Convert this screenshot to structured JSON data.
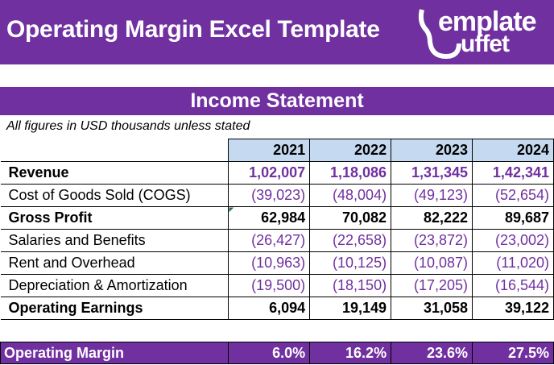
{
  "header": {
    "title": "Operating Margin Excel Template",
    "logo_text": [
      "emplate",
      "uffet"
    ]
  },
  "section_title": "Income Statement",
  "note": "All figures in USD thousands unless stated",
  "years": [
    "2021",
    "2022",
    "2023",
    "2024"
  ],
  "rows": [
    {
      "label": "Revenue",
      "values": [
        "1,02,007",
        "1,18,086",
        "1,31,345",
        "1,42,341"
      ]
    },
    {
      "label": "Cost of Goods Sold (COGS)",
      "values": [
        "(39,023)",
        "(48,004)",
        "(49,123)",
        "(52,654)"
      ]
    },
    {
      "label": "Gross Profit",
      "values": [
        "62,984",
        "70,082",
        "82,222",
        "89,687"
      ]
    },
    {
      "label": "Salaries and Benefits",
      "values": [
        "(26,427)",
        "(22,658)",
        "(23,872)",
        "(23,002)"
      ]
    },
    {
      "label": "Rent and Overhead",
      "values": [
        "(10,963)",
        "(10,125)",
        "(10,087)",
        "(11,020)"
      ]
    },
    {
      "label": "Depreciation & Amortization",
      "values": [
        "(19,500)",
        "(18,150)",
        "(17,205)",
        "(16,544)"
      ]
    },
    {
      "label": "Operating Earnings",
      "values": [
        "6,094",
        "19,149",
        "31,058",
        "39,122"
      ]
    }
  ],
  "margin": {
    "label": "Operating Margin",
    "values": [
      "6.0%",
      "16.2%",
      "23.6%",
      "27.5%"
    ]
  },
  "colors": {
    "brand": "#7030A0",
    "header_fill": "#C5D9F1"
  }
}
